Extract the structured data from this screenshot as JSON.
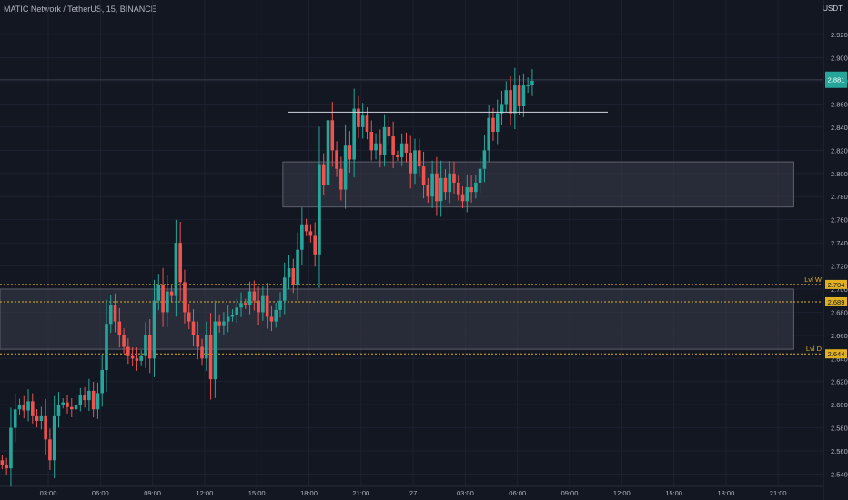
{
  "header": {
    "title": "MATIC Network / TetherUS, 15, BINANCE",
    "currency": "USDT"
  },
  "colors": {
    "up": "#26a69a",
    "down": "#ef5350",
    "background": "#131722",
    "grid": "#1e2230",
    "level": "#e0b020",
    "zone": "#3a3d4a"
  },
  "chart_data": {
    "type": "candlestick",
    "xlabel": "",
    "ylabel": "",
    "ylim": [
      2.53,
      2.945
    ],
    "y_ticks": [
      "2.540",
      "2.560",
      "2.580",
      "2.600",
      "2.620",
      "2.640",
      "2.660",
      "2.680",
      "2.700",
      "2.720",
      "2.740",
      "2.760",
      "2.780",
      "2.800",
      "2.820",
      "2.840",
      "2.860",
      "2.880",
      "2.900",
      "2.920"
    ],
    "x_ticks": [
      {
        "label": "03:00",
        "time": 3
      },
      {
        "label": "06:00",
        "time": 6
      },
      {
        "label": "09:00",
        "time": 9
      },
      {
        "label": "12:00",
        "time": 12
      },
      {
        "label": "15:00",
        "time": 15
      },
      {
        "label": "18:00",
        "time": 18
      },
      {
        "label": "21:00",
        "time": 21
      },
      {
        "label": "27",
        "time": 24
      },
      {
        "label": "03:00",
        "time": 27
      },
      {
        "label": "06:00",
        "time": 30
      },
      {
        "label": "09:00",
        "time": 33
      },
      {
        "label": "12:00",
        "time": 36
      },
      {
        "label": "15:00",
        "time": 39
      },
      {
        "label": "18:00",
        "time": 42
      },
      {
        "label": "21:00",
        "time": 45
      }
    ],
    "start_time": 0.35,
    "interval_hours": 0.25,
    "closes": [
      2.548,
      2.545,
      2.58,
      2.596,
      2.6,
      2.595,
      2.603,
      2.59,
      2.586,
      2.59,
      2.57,
      2.552,
      2.59,
      2.6,
      2.602,
      2.598,
      2.596,
      2.6,
      2.608,
      2.604,
      2.612,
      2.596,
      2.61,
      2.63,
      2.67,
      2.686,
      2.672,
      2.66,
      2.65,
      2.642,
      2.64,
      2.638,
      2.642,
      2.66,
      2.64,
      2.69,
      2.704,
      2.68,
      2.698,
      2.694,
      2.74,
      2.706,
      2.68,
      2.672,
      2.66,
      2.65,
      2.64,
      2.66,
      2.622,
      2.672,
      2.668,
      2.672,
      2.676,
      2.678,
      2.684,
      2.688,
      2.686,
      2.698,
      2.69,
      2.68,
      2.694,
      2.676,
      2.672,
      2.682,
      2.69,
      2.71,
      2.718,
      2.704,
      2.734,
      2.756,
      2.75,
      2.746,
      2.73,
      2.808,
      2.79,
      2.846,
      2.82,
      2.804,
      2.786,
      2.824,
      2.812,
      2.856,
      2.84,
      2.85,
      2.836,
      2.82,
      2.826,
      2.816,
      2.84,
      2.832,
      2.816,
      2.814,
      2.826,
      2.818,
      2.8,
      2.82,
      2.806,
      2.79,
      2.78,
      2.8,
      2.776,
      2.796,
      2.784,
      2.8,
      2.792,
      2.782,
      2.776,
      2.788,
      2.784,
      2.792,
      2.804,
      2.82,
      2.848,
      2.836,
      2.852,
      2.86,
      2.872,
      2.852,
      2.876,
      2.858,
      2.876,
      2.876,
      2.88
    ],
    "current_price": "2.881",
    "levels": [
      {
        "name": "Lvl W",
        "value": 2.704,
        "label": "2.704"
      },
      {
        "name": "",
        "value": 2.689,
        "label": "2.689"
      },
      {
        "name": "Lvl D",
        "value": 2.644,
        "label": "2.644"
      }
    ],
    "zones": [
      {
        "y1": 2.771,
        "y2": 2.81,
        "t1": 16.5,
        "t2": 45.9
      },
      {
        "y1": 2.648,
        "y2": 2.7,
        "t1": -5,
        "t2": 45.9
      }
    ],
    "resistance_line": {
      "value": 2.853,
      "t1": 16.8,
      "t2": 35.2
    }
  }
}
